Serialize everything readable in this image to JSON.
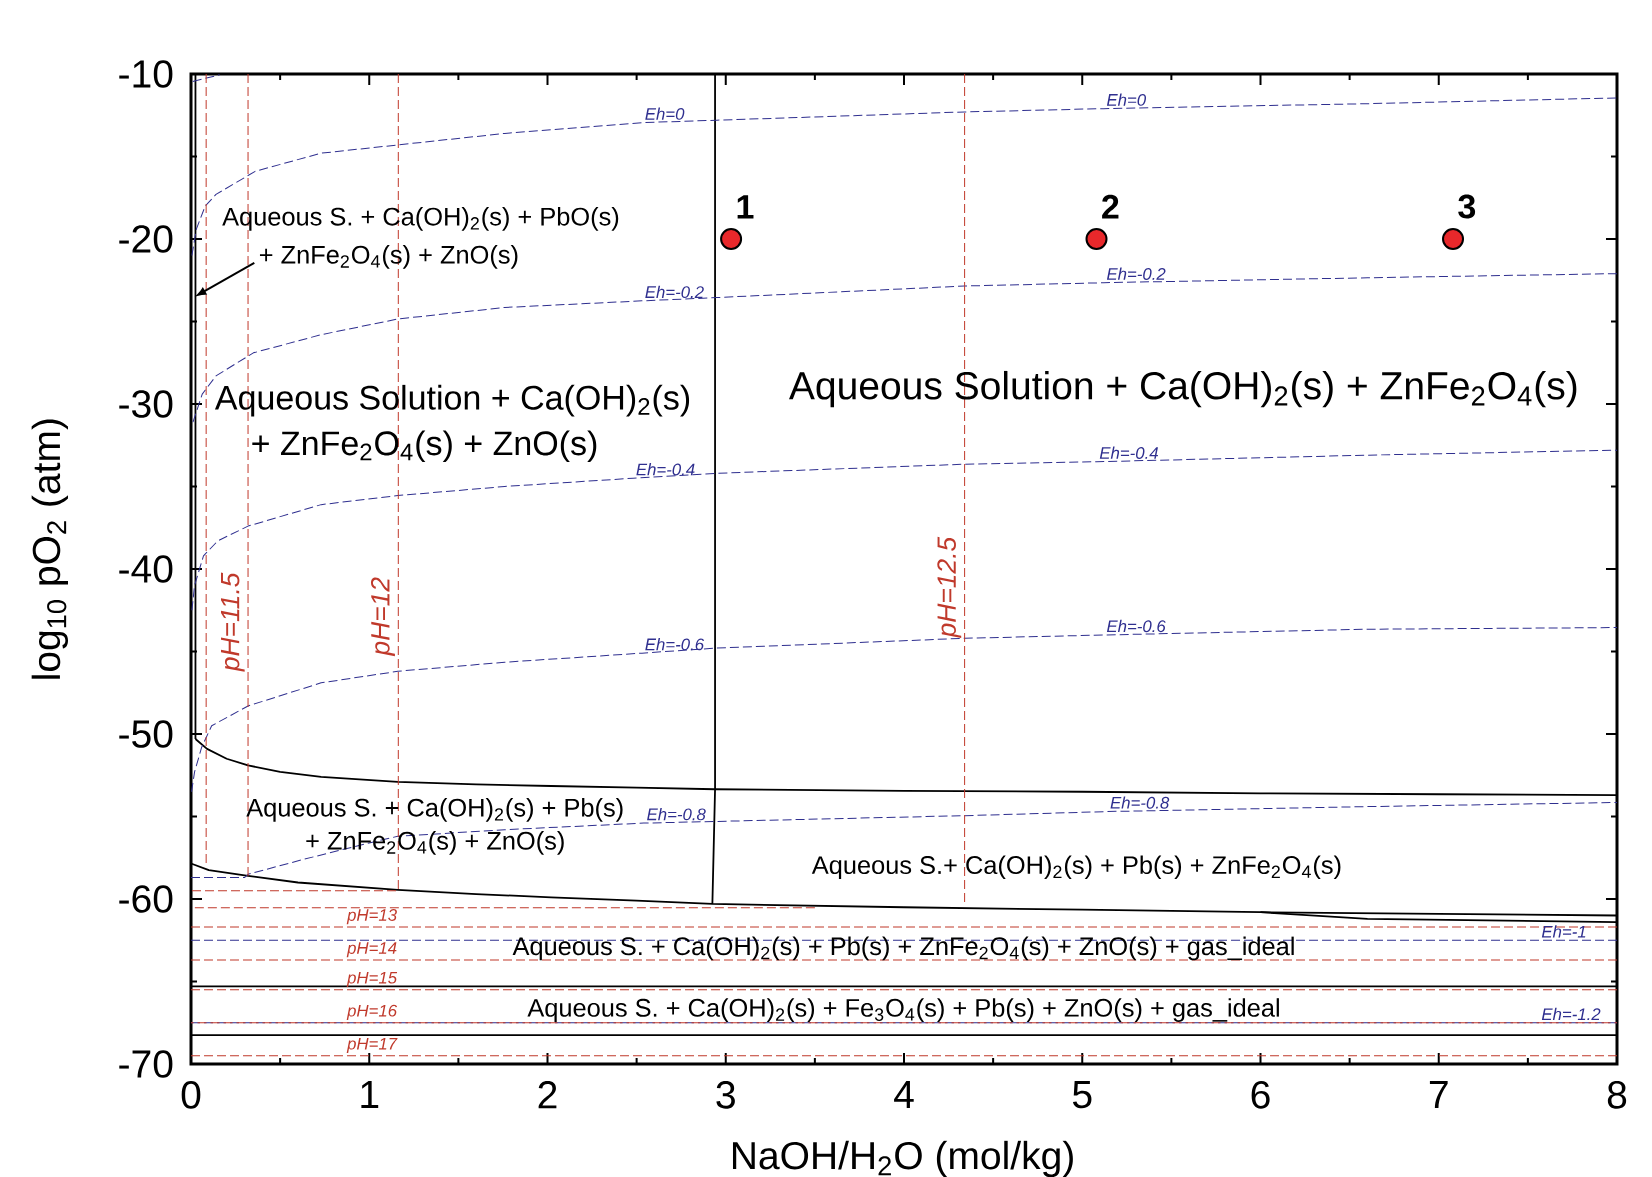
{
  "chart_data": {
    "type": "line",
    "xlabel": "NaOH/H$_{2}$O (mol/kg)",
    "ylabel": "log$_{10}$ pO$_{2}$ (atm)",
    "xlim": [
      0,
      8
    ],
    "ylim": [
      -70,
      -10
    ],
    "xticks": [
      0,
      1,
      2,
      3,
      4,
      5,
      6,
      7,
      8
    ],
    "yticks": [
      -70,
      -60,
      -50,
      -40,
      -30,
      -20,
      -10
    ],
    "series": [
      {
        "color": "#000000",
        "line_style": "solid",
        "x": [
          0.025,
          0.025
        ],
        "values": [
          -10,
          -50.3
        ]
      },
      {
        "color": "#000000",
        "line_style": "solid",
        "x": [
          0.025,
          0.09,
          0.2,
          0.32,
          0.5,
          0.73,
          1.16,
          1.6,
          2.02,
          2.5,
          2.94,
          4,
          5,
          6,
          7,
          8
        ],
        "values": [
          -50.3,
          -50.9,
          -51.5,
          -51.9,
          -52.3,
          -52.6,
          -52.9,
          -53.05,
          -53.15,
          -53.25,
          -53.35,
          -53.45,
          -53.5,
          -53.6,
          -53.65,
          -53.7
        ]
      },
      {
        "color": "#000000",
        "line_style": "solid",
        "x": [
          2.94,
          2.94,
          2.925
        ],
        "values": [
          -10,
          -53.35,
          -60.3
        ]
      },
      {
        "color": "#000000",
        "line_style": "solid",
        "x": [
          0,
          0.1,
          0.32,
          0.6,
          1.16,
          1.6,
          2.02,
          2.5,
          2.925,
          4,
          5,
          6,
          7,
          8
        ],
        "values": [
          -57.85,
          -58.25,
          -58.6,
          -59.0,
          -59.45,
          -59.7,
          -59.9,
          -60.1,
          -60.3,
          -60.5,
          -60.65,
          -60.8,
          -60.9,
          -61.0
        ]
      },
      {
        "color": "#000000",
        "line_style": "solid",
        "x": [
          6,
          6.6,
          8
        ],
        "values": [
          -60.8,
          -61.2,
          -61.4
        ]
      },
      {
        "color": "#000000",
        "line_style": "solid",
        "x": [
          0,
          8
        ],
        "values": [
          -65.3,
          -65.3
        ]
      },
      {
        "color": "#000000",
        "line_style": "solid",
        "x": [
          0,
          8
        ],
        "values": [
          -68.25,
          -68.25
        ]
      },
      {
        "color": "#2f2f8f",
        "line_style": "dashed",
        "x": [
          0.01,
          0.16
        ],
        "values": [
          -10.45,
          -10.05
        ]
      },
      {
        "color": "#2f2f8f",
        "line_style": "dashed",
        "x": [
          0.005,
          0.03,
          0.08,
          0.14,
          0.36,
          0.73,
          1.16,
          1.76,
          2.53,
          2.95,
          4.34,
          5.12,
          6.6,
          8
        ],
        "values": [
          -21.0,
          -19.4,
          -18.0,
          -17.3,
          -15.9,
          -14.8,
          -14.3,
          -13.6,
          -12.95,
          -12.8,
          -12.3,
          -12.1,
          -11.8,
          -11.45
        ]
      },
      {
        "color": "#2f2f8f",
        "line_style": "dashed",
        "x": [
          0.011,
          0.063,
          0.14,
          0.35,
          0.73,
          1.16,
          1.76,
          2.53,
          2.95,
          4.34,
          5.12,
          6.6,
          8
        ],
        "values": [
          -31.1,
          -29.4,
          -28.3,
          -26.9,
          -25.8,
          -24.85,
          -24.15,
          -23.75,
          -23.55,
          -22.85,
          -22.65,
          -22.35,
          -22.1
        ]
      },
      {
        "color": "#2f2f8f",
        "line_style": "dashed",
        "x": [
          0.005,
          0.02,
          0.07,
          0.15,
          0.32,
          0.73,
          1.16,
          1.76,
          2.48,
          2.95,
          4.34,
          5.08,
          6.6,
          8
        ],
        "values": [
          -42.5,
          -41.0,
          -39.2,
          -38.3,
          -37.4,
          -36.1,
          -35.55,
          -35.0,
          -34.5,
          -34.2,
          -33.65,
          -33.5,
          -33.1,
          -32.8
        ]
      },
      {
        "color": "#2f2f8f",
        "line_style": "dashed",
        "x": [
          0.003,
          0.02,
          0.06,
          0.116,
          0.32,
          0.73,
          1.16,
          1.76,
          2.53,
          2.94,
          4.34,
          5.12,
          6.6,
          8
        ],
        "values": [
          -53.5,
          -52.3,
          -50.8,
          -49.5,
          -48.3,
          -46.9,
          -46.2,
          -45.65,
          -45.1,
          -44.8,
          -44.2,
          -44.0,
          -43.65,
          -43.55
        ]
      },
      {
        "color": "#2f2f8f",
        "line_style": "dashed",
        "x": [
          0,
          0.3,
          0.32,
          0.63,
          1.0,
          1.16,
          1.76,
          2.54,
          2.94,
          4.34,
          5.14,
          6.6,
          8
        ],
        "values": [
          -58.7,
          -58.7,
          -58.5,
          -57.6,
          -56.6,
          -56.2,
          -55.8,
          -55.4,
          -55.3,
          -54.95,
          -54.7,
          -54.4,
          -54.15
        ]
      },
      {
        "color": "#2f2f8f",
        "line_style": "dashed",
        "x": [
          0,
          7.56,
          8
        ],
        "values": [
          -62.5,
          -62.5,
          -62.5
        ]
      },
      {
        "color": "#2f2f8f",
        "line_style": "dashed",
        "x": [
          0,
          7.56,
          8
        ],
        "values": [
          -67.5,
          -67.5,
          -67.5
        ]
      },
      {
        "color": "#c0392b",
        "line_style": "dashed",
        "x": [
          0.085,
          0.085
        ],
        "values": [
          -10,
          -58.0
        ]
      },
      {
        "color": "#c0392b",
        "line_style": "dashed",
        "x": [
          0.32,
          0.32,
          0.32
        ],
        "values": [
          -10,
          -46.4,
          -58.6
        ]
      },
      {
        "color": "#c0392b",
        "line_style": "dashed",
        "x": [
          1.163,
          1.163,
          1.163
        ],
        "values": [
          -10,
          -45.45,
          -59.45
        ]
      },
      {
        "color": "#c0392b",
        "line_style": "dashed",
        "x": [
          4.34,
          4.34,
          4.34
        ],
        "values": [
          -10,
          -44.35,
          -60.4
        ]
      },
      {
        "color": "#c0392b",
        "line_style": "dashed",
        "x": [
          1.15,
          0
        ],
        "values": [
          -59.5,
          -59.5
        ]
      },
      {
        "color": "#c0392b",
        "line_style": "dashed",
        "x": [
          3.5,
          0
        ],
        "values": [
          -60.53,
          -60.53
        ]
      },
      {
        "color": "#c0392b",
        "line_style": "dashed",
        "x": [
          0,
          0.86,
          8
        ],
        "values": [
          -61.7,
          -61.7,
          -61.7
        ]
      },
      {
        "color": "#c0392b",
        "line_style": "dashed",
        "x": [
          0,
          0.86,
          8
        ],
        "values": [
          -63.7,
          -63.7,
          -63.7
        ]
      },
      {
        "color": "#c0392b",
        "line_style": "dashed",
        "x": [
          0,
          0.86,
          8
        ],
        "values": [
          -65.5,
          -65.5,
          -65.5
        ]
      },
      {
        "color": "#c0392b",
        "line_style": "dashed",
        "x": [
          0,
          0.86,
          8
        ],
        "values": [
          -67.5,
          -67.5,
          -67.5
        ]
      },
      {
        "color": "#c0392b",
        "line_style": "dashed",
        "x": [
          0,
          0.86,
          8
        ],
        "values": [
          -69.5,
          -69.5,
          -69.5
        ]
      },
      {
        "type": "scatter",
        "marker": "circle",
        "color": "#e8282b",
        "x": [
          3.03,
          5.08,
          7.08
        ],
        "values": [
          -20,
          -20,
          -20
        ]
      }
    ],
    "annotations": [
      {
        "text": "Aqueous S. + Ca(OH)$_{2}$(s) + PbO(s)",
        "x": 0.02,
        "y": -23.5
      },
      "+ ZnFe$_{2}$O$_{4}$(s) + ZnO(s)",
      "Aqueous Solution + Ca(OH)$_{2}$(s)",
      "+ ZnFe$_{2}$O$_{4}$(s) + ZnO(s)",
      "Aqueous Solution + Ca(OH)$_{2}$(s) + ZnFe$_{2}$O$_{4}$(s)",
      "Aqueous S. + Ca(OH)$_{2}$(s) + Pb(s)",
      "+ ZnFe$_{2}$O$_{4}$(s) + ZnO(s)",
      "Aqueous S.+ Ca(OH)$_{2}$(s) + Pb(s) + ZnFe$_{2}$O$_{4}$(s)",
      "Aqueous S. + Ca(OH)$_{2}$(s) + Pb(s) + ZnFe$_{2}$O$_{4}$(s) + ZnO(s) + gas_ideal",
      "Aqueous S. + Ca(OH)$_{2}$(s) + Fe$_{3}$O$_{4}$(s) + Pb(s) + ZnO(s) + gas_ideal",
      {
        "text": "Eh=0",
        "x": 2.53,
        "y": -12.95
      },
      {
        "text": "Eh=0",
        "x": 5.12,
        "y": -12.1
      },
      {
        "text": "Eh=-0.2",
        "x": 2.53,
        "y": -23.75
      },
      {
        "text": "Eh=-0.2",
        "x": 5.12,
        "y": -22.65
      },
      {
        "text": "Eh=-0.4",
        "x": 2.48,
        "y": -34.5
      },
      {
        "text": "Eh=-0.4",
        "x": 5.08,
        "y": -33.5
      },
      {
        "text": "Eh=-0.6",
        "x": 2.53,
        "y": -45.1
      },
      {
        "text": "Eh=-0.6",
        "x": 5.12,
        "y": -44.0
      },
      {
        "text": "Eh=-0.8",
        "x": 2.54,
        "y": -55.4
      },
      {
        "text": "Eh=-0.8",
        "x": 5.14,
        "y": -54.7
      },
      {
        "text": "Eh=-1",
        "x": 7.56,
        "y": -62.5
      },
      {
        "text": "Eh=-1.2",
        "x": 7.56,
        "y": -67.5
      },
      {
        "text": "pH=11.5",
        "x": 0.32,
        "y": -46.4
      },
      {
        "text": "pH=12",
        "x": 1.163,
        "y": -45.45
      },
      {
        "text": "pH=12.5",
        "x": 4.34,
        "y": -44.35
      },
      {
        "text": "pH=13",
        "x": 0.86,
        "y": -61.7
      },
      {
        "text": "pH=14",
        "x": 0.86,
        "y": -63.7
      },
      {
        "text": "pH=15",
        "x": 0.86,
        "y": -65.5
      },
      {
        "text": "pH=16",
        "x": 0.86,
        "y": -67.5
      },
      {
        "text": "pH=17",
        "x": 0.86,
        "y": -69.5
      },
      {
        "text": "1",
        "x": 3.03,
        "y": -20
      },
      {
        "text": "2",
        "x": 5.08,
        "y": -20
      },
      {
        "text": "3",
        "x": 7.08,
        "y": -20
      }
    ]
  }
}
